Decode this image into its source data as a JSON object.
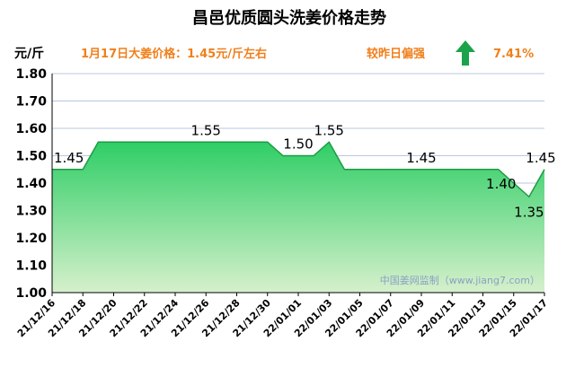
{
  "title": "昌邑优质圆头洗姜价格走势",
  "unit_label": "元/斤",
  "price_note": "1月17日大姜价格：1.45元/斤左右",
  "change_label": "较昨日偏强",
  "change_icon": "up-arrow-icon",
  "change_value": "7.41%",
  "watermark": "中国姜网监制（www.jiang7.com）",
  "colors": {
    "title": "#000000",
    "highlight": "#f07f1a",
    "arrow": "#1aa34a",
    "fill_top": "#2fce66",
    "fill_bottom": "#d6f0cc",
    "line": "#1f9a44",
    "grid": "#b8c7df",
    "axis": "#000000",
    "watermark": "#8aa1c4"
  },
  "chart_data": {
    "type": "area",
    "x": [
      "21/12/16",
      "21/12/17",
      "21/12/18",
      "21/12/19",
      "21/12/20",
      "21/12/21",
      "21/12/22",
      "21/12/23",
      "21/12/24",
      "21/12/25",
      "21/12/26",
      "21/12/27",
      "21/12/28",
      "21/12/29",
      "21/12/30",
      "21/12/31",
      "22/01/01",
      "22/01/02",
      "22/01/03",
      "22/01/04",
      "22/01/05",
      "22/01/06",
      "22/01/07",
      "22/01/08",
      "22/01/09",
      "22/01/10",
      "22/01/11",
      "22/01/12",
      "22/01/13",
      "22/01/14",
      "22/01/15",
      "22/01/16",
      "22/01/17"
    ],
    "values": [
      1.45,
      1.45,
      1.45,
      1.55,
      1.55,
      1.55,
      1.55,
      1.55,
      1.55,
      1.55,
      1.55,
      1.55,
      1.55,
      1.55,
      1.55,
      1.5,
      1.5,
      1.5,
      1.55,
      1.45,
      1.45,
      1.45,
      1.45,
      1.45,
      1.45,
      1.45,
      1.45,
      1.45,
      1.45,
      1.45,
      1.4,
      1.35,
      1.45
    ],
    "xticks": [
      "21/12/16",
      "21/12/18",
      "21/12/20",
      "21/12/22",
      "21/12/24",
      "21/12/26",
      "21/12/28",
      "21/12/30",
      "22/01/01",
      "22/01/03",
      "22/01/05",
      "22/01/07",
      "22/01/09",
      "22/01/11",
      "22/01/13",
      "22/01/15",
      "22/01/17"
    ],
    "yticks": [
      "1.00",
      "1.10",
      "1.20",
      "1.30",
      "1.40",
      "1.50",
      "1.60",
      "1.70",
      "1.80"
    ],
    "ylim": [
      1.0,
      1.8
    ],
    "data_labels": [
      {
        "x": "21/12/16",
        "y": 1.45,
        "text": "1.45",
        "pos": "above"
      },
      {
        "x": "21/12/26",
        "y": 1.55,
        "text": "1.55",
        "pos": "above"
      },
      {
        "x": "22/01/01",
        "y": 1.5,
        "text": "1.50",
        "pos": "above"
      },
      {
        "x": "22/01/03",
        "y": 1.55,
        "text": "1.55",
        "pos": "above"
      },
      {
        "x": "22/01/09",
        "y": 1.45,
        "text": "1.45",
        "pos": "above"
      },
      {
        "x": "22/01/15",
        "y": 1.4,
        "text": "1.40",
        "pos": "left"
      },
      {
        "x": "22/01/16",
        "y": 1.35,
        "text": "1.35",
        "pos": "below"
      },
      {
        "x": "22/01/17",
        "y": 1.45,
        "text": "1.45",
        "pos": "above"
      }
    ],
    "grid": true,
    "legend": "none"
  }
}
